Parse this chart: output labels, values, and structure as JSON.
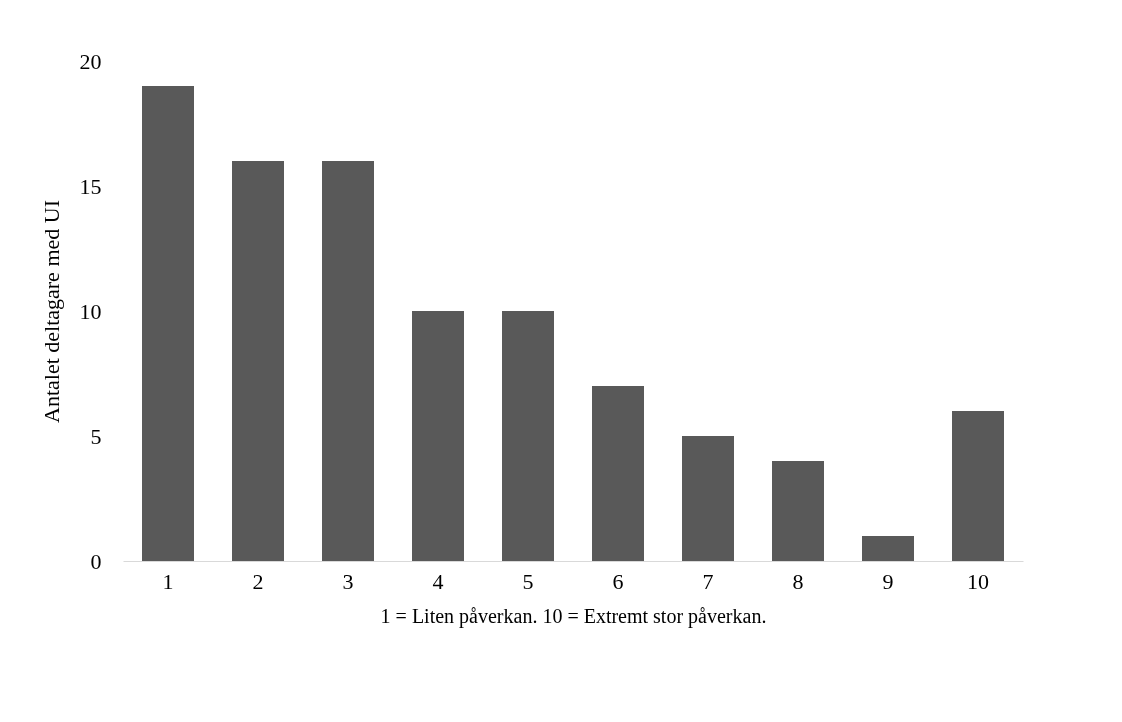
{
  "chart_data": {
    "type": "bar",
    "xlabel": "1 = Liten påverkan.  10 = Extremt stor påverkan.",
    "ylabel": "Antalet deltagare med UI",
    "categories": [
      "1",
      "2",
      "3",
      "4",
      "5",
      "6",
      "7",
      "8",
      "9",
      "10"
    ],
    "values": [
      19,
      16,
      16,
      10,
      10,
      7,
      5,
      4,
      1,
      6
    ],
    "color": "#595959",
    "ylim": [
      0,
      20
    ],
    "yticks": [
      0,
      5,
      10,
      15,
      20
    ],
    "grid": false
  }
}
